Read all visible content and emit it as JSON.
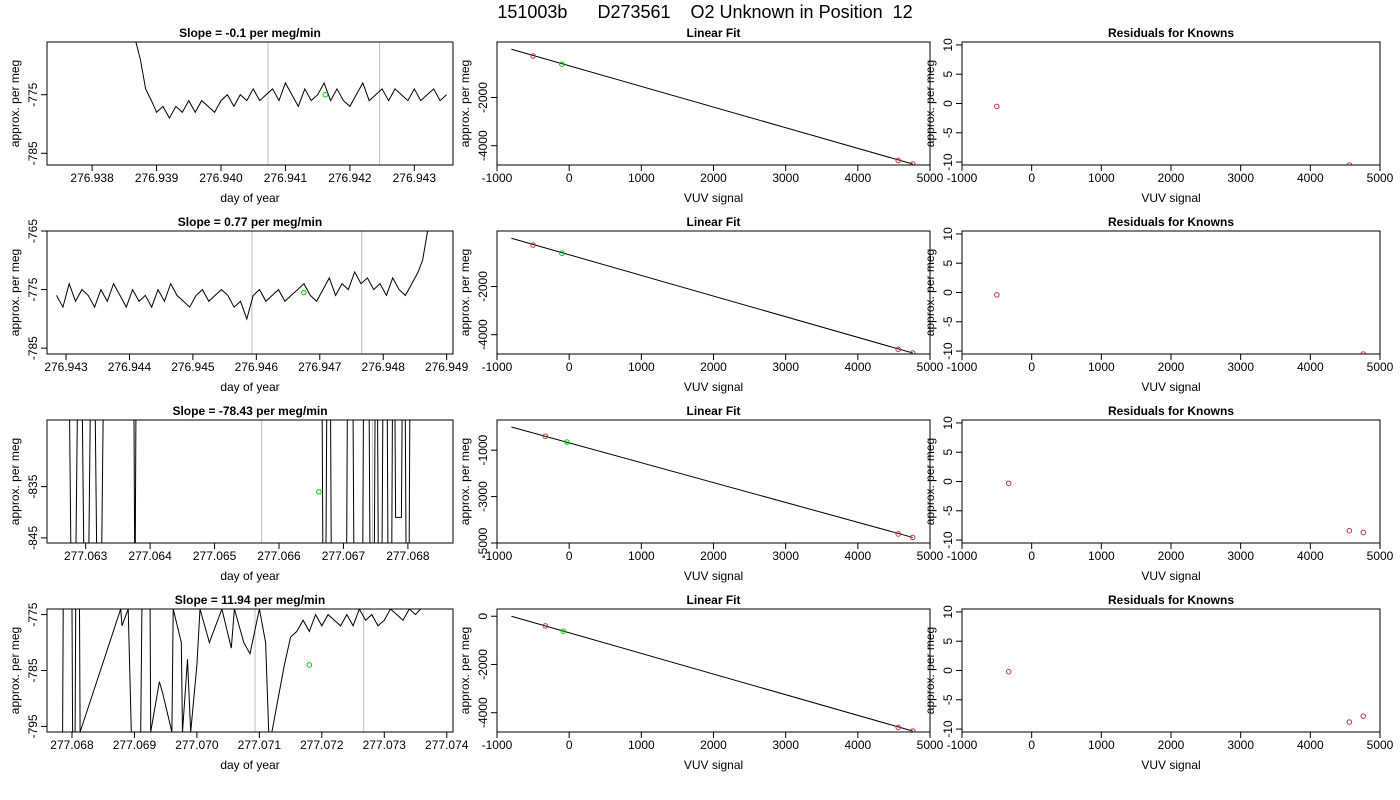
{
  "figure": {
    "title": "151003b      D273561    O2 Unknown in Position  12"
  },
  "chart_data": [
    {
      "type": "line",
      "role": "timeseries",
      "title": "Slope =  -0.1  per meg/min",
      "xlabel": "day of year",
      "ylabel": "approx. per meg",
      "xlim": [
        276.9373,
        276.9436
      ],
      "ylim": [
        -787,
        -766
      ],
      "xticks": [
        "276.938",
        "276.939",
        "276.940",
        "276.941",
        "276.942",
        "276.943"
      ],
      "yticks": [
        "-775",
        "-785"
      ],
      "vlines": [
        276.94073,
        276.94246
      ],
      "series": [
        {
          "color": "#000000",
          "x": [
            276.93868,
            276.93875,
            276.93883,
            276.93892,
            276.939,
            276.9391,
            276.9392,
            276.9393,
            276.9394,
            276.9395,
            276.9396,
            276.9397,
            276.9398,
            276.9399,
            276.94,
            276.9401,
            276.9402,
            276.9403,
            276.9404,
            276.9405,
            276.9406,
            276.9407,
            276.9408,
            276.9409,
            276.941,
            276.9411,
            276.9412,
            276.9413,
            276.9414,
            276.9415,
            276.9416,
            276.9417,
            276.9418,
            276.9419,
            276.942,
            276.9421,
            276.9422,
            276.9423,
            276.9424,
            276.9425,
            276.9426,
            276.9427,
            276.9428,
            276.9429,
            276.943,
            276.9431,
            276.9432,
            276.9433,
            276.9434,
            276.9435
          ],
          "y": [
            -766,
            -769,
            -774,
            -776,
            -778,
            -777,
            -779,
            -777,
            -778,
            -776,
            -778,
            -776,
            -777,
            -778,
            -776,
            -775,
            -777,
            -775,
            -776,
            -774,
            -776,
            -775,
            -774,
            -776,
            -773,
            -775,
            -777,
            -774,
            -776,
            -775,
            -773,
            -776,
            -774,
            -776,
            -777,
            -775,
            -773,
            -776,
            -775,
            -774,
            -776,
            -774,
            -775,
            -776,
            -774,
            -776,
            -775,
            -774,
            -776,
            -775
          ]
        }
      ],
      "markers": [
        {
          "x": 276.94162,
          "y": -775,
          "color": "#00cc00"
        }
      ]
    },
    {
      "type": "line",
      "role": "linear-fit",
      "title": "Linear Fit",
      "xlabel": "VUV signal",
      "ylabel": "approx. per meg",
      "xlim": [
        -1000,
        5000
      ],
      "ylim": [
        -4800,
        300
      ],
      "xticks": [
        "-1000",
        "0",
        "1000",
        "2000",
        "3000",
        "4000",
        "5000"
      ],
      "yticks": [
        "-2000",
        "-4000"
      ],
      "line": {
        "x": [
          -800,
          4760
        ],
        "y": [
          0,
          -4760
        ],
        "color": "#000000"
      },
      "points": [
        {
          "x": -500,
          "y": -280,
          "color": "#cc3333"
        },
        {
          "x": -100,
          "y": -620,
          "color": "#00cc00"
        },
        {
          "x": 4560,
          "y": -4610,
          "color": "#cc3333"
        },
        {
          "x": 4760,
          "y": -4760,
          "color": "#cc3333"
        }
      ]
    },
    {
      "type": "scatter",
      "role": "residuals",
      "title": "Residuals for Knowns",
      "xlabel": "VUV signal",
      "ylabel": "approx. per meg",
      "xlim": [
        -1000,
        5000
      ],
      "ylim": [
        -10.5,
        10.5
      ],
      "xticks": [
        "-1000",
        "0",
        "1000",
        "2000",
        "3000",
        "4000",
        "5000"
      ],
      "yticks": [
        "10",
        "5",
        "0",
        "-5",
        "-10"
      ],
      "points": [
        {
          "x": -500,
          "y": -0.5,
          "color": "#cc3333"
        },
        {
          "x": 4560,
          "y": -10.5,
          "color": "#cc3333"
        }
      ]
    },
    {
      "type": "line",
      "role": "timeseries",
      "title": "Slope =  0.77  per meg/min",
      "xlabel": "day of year",
      "ylabel": "approx. per meg",
      "xlim": [
        276.9427,
        276.9491
      ],
      "ylim": [
        -786,
        -765
      ],
      "xticks": [
        "276.943",
        "276.944",
        "276.945",
        "276.946",
        "276.947",
        "276.948",
        "276.949"
      ],
      "yticks": [
        "-765",
        "-775",
        "-785"
      ],
      "vlines": [
        276.94593,
        276.94766
      ],
      "series": [
        {
          "color": "#000000",
          "x": [
            276.94285,
            276.94295,
            276.94305,
            276.94315,
            276.94325,
            276.94335,
            276.94345,
            276.94355,
            276.94365,
            276.94375,
            276.94385,
            276.94395,
            276.94405,
            276.94415,
            276.94425,
            276.94435,
            276.94445,
            276.94455,
            276.94465,
            276.94475,
            276.94485,
            276.94495,
            276.94505,
            276.94515,
            276.94525,
            276.94535,
            276.94545,
            276.94555,
            276.94565,
            276.94575,
            276.94585,
            276.94595,
            276.94605,
            276.94615,
            276.94625,
            276.94635,
            276.94645,
            276.94655,
            276.94665,
            276.94675,
            276.94685,
            276.94695,
            276.94705,
            276.94715,
            276.94725,
            276.94735,
            276.94745,
            276.94755,
            276.94765,
            276.94775,
            276.94785,
            276.94795,
            276.94805,
            276.94815,
            276.94825,
            276.94835,
            276.94845,
            276.94855,
            276.94862,
            276.9487
          ],
          "y": [
            -776,
            -778,
            -774,
            -777,
            -775,
            -776,
            -778,
            -775,
            -777,
            -774,
            -776,
            -778,
            -775,
            -777,
            -776,
            -778,
            -775,
            -777,
            -774,
            -776,
            -777,
            -778,
            -776,
            -775,
            -777,
            -776,
            -775,
            -776,
            -778,
            -777,
            -780,
            -776,
            -775,
            -777,
            -776,
            -775,
            -777,
            -776,
            -775,
            -774,
            -776,
            -777,
            -775,
            -773,
            -776,
            -774,
            -775,
            -772,
            -774,
            -773,
            -775,
            -774,
            -776,
            -773,
            -775,
            -776,
            -774,
            -772,
            -770,
            -765
          ]
        }
      ],
      "markers": [
        {
          "x": 276.94675,
          "y": -775.5,
          "color": "#00cc00"
        }
      ]
    },
    {
      "type": "line",
      "role": "linear-fit",
      "title": "Linear Fit",
      "xlabel": "VUV signal",
      "ylabel": "approx. per meg",
      "xlim": [
        -1000,
        5000
      ],
      "ylim": [
        -4800,
        300
      ],
      "xticks": [
        "-1000",
        "0",
        "1000",
        "2000",
        "3000",
        "4000",
        "5000"
      ],
      "yticks": [
        "-2000",
        "-4000"
      ],
      "line": {
        "x": [
          -800,
          4760
        ],
        "y": [
          0,
          -4760
        ],
        "color": "#000000"
      },
      "points": [
        {
          "x": -500,
          "y": -280,
          "color": "#cc3333"
        },
        {
          "x": -100,
          "y": -620,
          "color": "#00cc00"
        },
        {
          "x": 4560,
          "y": -4610,
          "color": "#cc3333"
        },
        {
          "x": 4760,
          "y": -4760,
          "color": "#cc3333"
        }
      ]
    },
    {
      "type": "scatter",
      "role": "residuals",
      "title": "Residuals for Knowns",
      "xlabel": "VUV signal",
      "ylabel": "approx. per meg",
      "xlim": [
        -1000,
        5000
      ],
      "ylim": [
        -10.5,
        10.5
      ],
      "xticks": [
        "-1000",
        "0",
        "1000",
        "2000",
        "3000",
        "4000",
        "5000"
      ],
      "yticks": [
        "10",
        "5",
        "0",
        "-5",
        "-10"
      ],
      "points": [
        {
          "x": -500,
          "y": -0.4,
          "color": "#cc3333"
        },
        {
          "x": 4760,
          "y": -10.5,
          "color": "#cc3333"
        }
      ]
    },
    {
      "type": "line",
      "role": "timeseries",
      "title": "Slope =  -78.43  per meg/min",
      "xlabel": "day of year",
      "ylabel": "approx. per meg",
      "xlim": [
        277.0624,
        277.0687
      ],
      "ylim": [
        -846,
        -822
      ],
      "xticks": [
        "277.063",
        "277.064",
        "277.065",
        "277.066",
        "277.067",
        "277.068"
      ],
      "yticks": [
        "-835",
        "-845"
      ],
      "vlines": [
        277.06573,
        277.06745
      ],
      "series": [
        {
          "color": "#000000",
          "x": [
            277.06275,
            277.06277,
            277.06285,
            277.06287,
            277.06295,
            277.06297,
            277.06305,
            277.06307,
            277.06315,
            277.06317,
            277.06325,
            277.06327,
            277.06375,
            277.06376,
            277.06377,
            277.06378,
            277.06667,
            277.06668,
            277.06673,
            277.06674,
            277.0668,
            277.06681,
            277.06705,
            277.06706,
            277.06715,
            277.06716,
            277.0673,
            277.06731,
            277.0674,
            277.06741,
            277.06748,
            277.06749,
            277.06753,
            277.06754,
            277.0676,
            277.06761,
            277.06768,
            277.06769,
            277.06775,
            277.06776,
            277.0678,
            277.06781,
            277.0679,
            277.06791,
            277.06796,
            277.06797,
            277.06802,
            277.06803
          ],
          "y": [
            -822,
            -846,
            -846,
            -822,
            -822,
            -846,
            -846,
            -822,
            -822,
            -846,
            -846,
            -822,
            -822,
            -846,
            -846,
            -822,
            -822,
            -846,
            -846,
            -822,
            -822,
            -846,
            -846,
            -822,
            -822,
            -846,
            -846,
            -822,
            -822,
            -846,
            -846,
            -822,
            -822,
            -846,
            -846,
            -822,
            -822,
            -846,
            -846,
            -822,
            -822,
            -841,
            -841,
            -822,
            -822,
            -846,
            -846,
            -822
          ]
        }
      ],
      "markers": [
        {
          "x": 277.06662,
          "y": -836,
          "color": "#00cc00"
        }
      ]
    },
    {
      "type": "line",
      "role": "linear-fit",
      "title": "Linear Fit",
      "xlabel": "VUV signal",
      "ylabel": "approx. per meg",
      "xlim": [
        -1000,
        5000
      ],
      "ylim": [
        -5000,
        300
      ],
      "xticks": [
        "-1000",
        "0",
        "1000",
        "2000",
        "3000",
        "4000",
        "5000"
      ],
      "yticks": [
        "-1000",
        "-3000",
        "-5000"
      ],
      "line": {
        "x": [
          -800,
          4760
        ],
        "y": [
          0,
          -4760
        ],
        "color": "#000000"
      },
      "points": [
        {
          "x": -330,
          "y": -400,
          "color": "#cc3333"
        },
        {
          "x": -30,
          "y": -650,
          "color": "#00cc00"
        },
        {
          "x": 4560,
          "y": -4610,
          "color": "#cc3333"
        },
        {
          "x": 4760,
          "y": -4760,
          "color": "#cc3333"
        }
      ]
    },
    {
      "type": "scatter",
      "role": "residuals",
      "title": "Residuals for Knowns",
      "xlabel": "VUV signal",
      "ylabel": "approx. per meg",
      "xlim": [
        -1000,
        5000
      ],
      "ylim": [
        -10.5,
        10.5
      ],
      "xticks": [
        "-1000",
        "0",
        "1000",
        "2000",
        "3000",
        "4000",
        "5000"
      ],
      "yticks": [
        "10",
        "5",
        "0",
        "-5",
        "-10"
      ],
      "points": [
        {
          "x": -330,
          "y": -0.3,
          "color": "#cc3333"
        },
        {
          "x": 4560,
          "y": -8.4,
          "color": "#cc3333"
        },
        {
          "x": 4760,
          "y": -8.7,
          "color": "#cc3333"
        }
      ]
    },
    {
      "type": "line",
      "role": "timeseries",
      "title": "Slope =  11.94  per meg/min",
      "xlabel": "day of year",
      "ylabel": "approx. per meg",
      "xlim": [
        277.0676,
        277.0741
      ],
      "ylim": [
        -796,
        -774
      ],
      "xticks": [
        "277.068",
        "277.069",
        "277.070",
        "277.071",
        "277.072",
        "277.073",
        "277.074"
      ],
      "yticks": [
        "-775",
        "-785",
        "-795"
      ],
      "vlines": [
        277.07093,
        277.07267
      ],
      "series": [
        {
          "color": "#000000",
          "x": [
            277.06785,
            277.06786,
            277.068,
            277.06801,
            277.06805,
            277.06806,
            277.06812,
            277.06813,
            277.06878,
            277.0688,
            277.0689,
            277.06895,
            277.0691,
            277.06912,
            277.06925,
            277.06926,
            277.0694,
            277.06945,
            277.0696,
            277.06962,
            277.06975,
            277.06977,
            277.06985,
            277.0699,
            277.07,
            277.07005,
            277.0702,
            277.0704,
            277.07055,
            277.0706,
            277.07075,
            277.07085,
            277.071,
            277.0711,
            277.07115,
            277.0712,
            277.0713,
            277.0714,
            277.0715,
            277.0716,
            277.0717,
            277.0718,
            277.0719,
            277.072,
            277.0721,
            277.0722,
            277.0723,
            277.0724,
            277.0725,
            277.0726,
            277.0727,
            277.0728,
            277.0729,
            277.073,
            277.0731,
            277.0732,
            277.0733,
            277.0734,
            277.0735,
            277.07358,
            277.07365
          ],
          "y": [
            -796,
            -774,
            -774,
            -796,
            -796,
            -774,
            -774,
            -796,
            -774,
            -777,
            -774,
            -796,
            -796,
            -774,
            -774,
            -796,
            -787,
            -789,
            -796,
            -774,
            -780,
            -796,
            -783,
            -796,
            -784,
            -774,
            -780,
            -774,
            -781,
            -774,
            -780,
            -782,
            -774,
            -780,
            -796,
            -796,
            -790,
            -784,
            -779,
            -778,
            -776,
            -778,
            -775,
            -777,
            -775,
            -776,
            -777,
            -775,
            -777,
            -774,
            -776,
            -775,
            -777,
            -776,
            -774,
            -775,
            -776,
            -774,
            -775,
            -774,
            -773
          ]
        }
      ],
      "markers": [
        {
          "x": 277.0718,
          "y": -784,
          "color": "#00cc00"
        }
      ]
    },
    {
      "type": "line",
      "role": "linear-fit",
      "title": "Linear Fit",
      "xlabel": "VUV signal",
      "ylabel": "approx. per meg",
      "xlim": [
        -1000,
        5000
      ],
      "ylim": [
        -4800,
        300
      ],
      "xticks": [
        "-1000",
        "0",
        "1000",
        "2000",
        "3000",
        "4000",
        "5000"
      ],
      "yticks": [
        "0",
        "-2000",
        "-4000"
      ],
      "line": {
        "x": [
          -800,
          4760
        ],
        "y": [
          0,
          -4760
        ],
        "color": "#000000"
      },
      "points": [
        {
          "x": -330,
          "y": -400,
          "color": "#cc3333"
        },
        {
          "x": -80,
          "y": -620,
          "color": "#00cc00"
        },
        {
          "x": 4560,
          "y": -4610,
          "color": "#cc3333"
        },
        {
          "x": 4760,
          "y": -4760,
          "color": "#cc3333"
        }
      ]
    },
    {
      "type": "scatter",
      "role": "residuals",
      "title": "Residuals for Knowns",
      "xlabel": "VUV signal",
      "ylabel": "approx. per meg",
      "xlim": [
        -1000,
        5000
      ],
      "ylim": [
        -10.5,
        10.5
      ],
      "xticks": [
        "-1000",
        "0",
        "1000",
        "2000",
        "3000",
        "4000",
        "5000"
      ],
      "yticks": [
        "10",
        "5",
        "0",
        "-5",
        "-10"
      ],
      "points": [
        {
          "x": -330,
          "y": -0.2,
          "color": "#cc3333"
        },
        {
          "x": 4560,
          "y": -8.8,
          "color": "#cc3333"
        },
        {
          "x": 4760,
          "y": -7.8,
          "color": "#cc3333"
        }
      ]
    }
  ]
}
